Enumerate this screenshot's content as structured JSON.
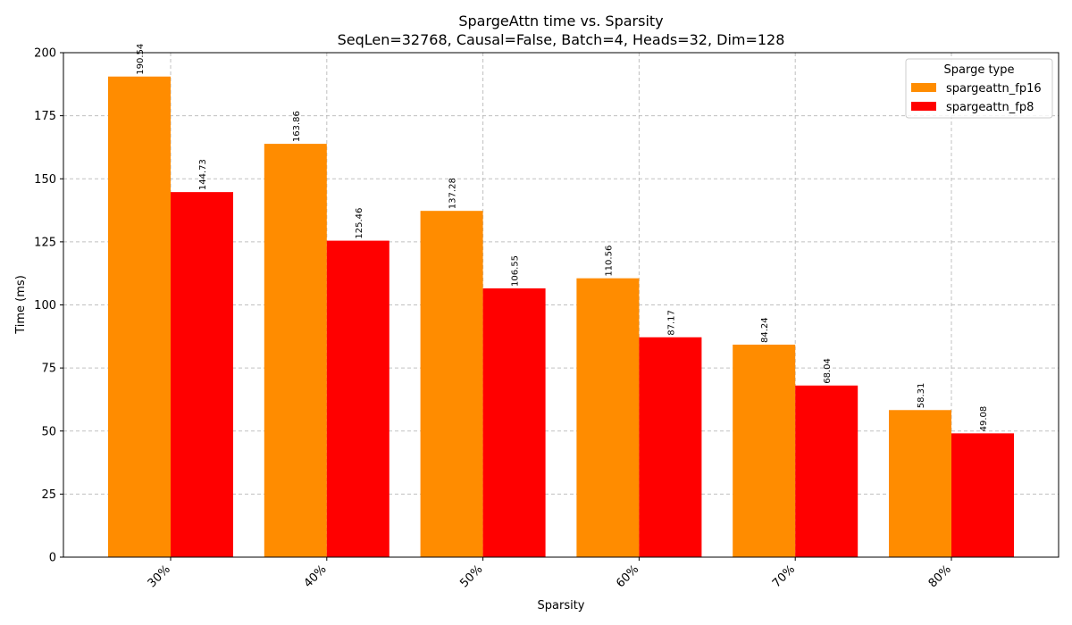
{
  "chart_data": {
    "type": "bar",
    "title": "SpargeAttn time vs. Sparsity",
    "subtitle": "SeqLen=32768, Causal=False, Batch=4, Heads=32, Dim=128",
    "xlabel": "Sparsity",
    "ylabel": "Time (ms)",
    "categories": [
      "30%",
      "40%",
      "50%",
      "60%",
      "70%",
      "80%"
    ],
    "ylim": [
      0,
      200
    ],
    "yticks": [
      0,
      25,
      50,
      75,
      100,
      125,
      150,
      175,
      200
    ],
    "grid": true,
    "legend": {
      "title": "Sparge type",
      "placement": "top-right"
    },
    "series": [
      {
        "name": "spargeattn_fp16",
        "color": "#ff8c00",
        "values": [
          190.54,
          163.86,
          137.28,
          110.56,
          84.24,
          58.31
        ],
        "labels": [
          "190.54",
          "163.86",
          "137.28",
          "110.56",
          "84.24",
          "58.31"
        ]
      },
      {
        "name": "spargeattn_fp8",
        "color": "#ff0000",
        "values": [
          144.73,
          125.46,
          106.55,
          87.17,
          68.04,
          49.08
        ],
        "labels": [
          "144.73",
          "125.46",
          "106.55",
          "87.17",
          "68.04",
          "49.08"
        ]
      }
    ]
  }
}
